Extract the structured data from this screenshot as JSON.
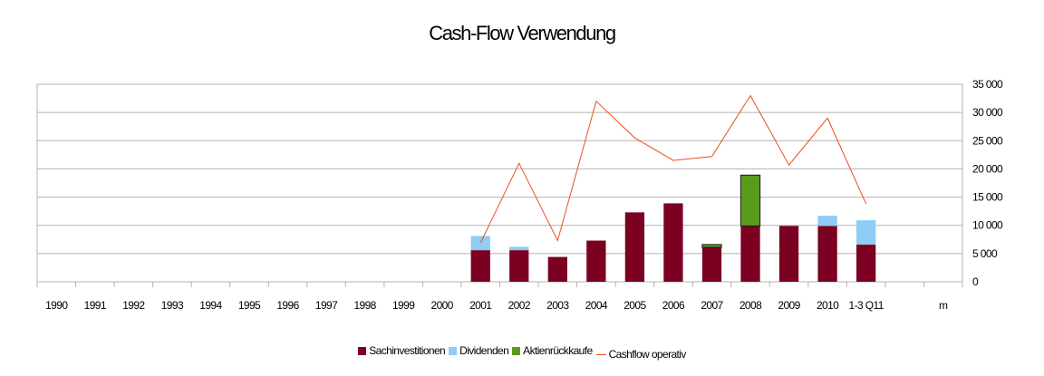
{
  "chart_data": {
    "type": "bar",
    "title": "Cash-Flow Verwendung",
    "categories": [
      "1990",
      "1991",
      "1992",
      "1993",
      "1994",
      "1995",
      "1996",
      "1997",
      "1998",
      "1999",
      "2000",
      "2001",
      "2002",
      "2003",
      "2004",
      "2005",
      "2006",
      "2007",
      "2008",
      "2009",
      "2010",
      "1-3 Q11",
      "",
      "m"
    ],
    "stacked": true,
    "series": [
      {
        "name": "Sachinvestitionen",
        "kind": "bar",
        "color": "#7b0022",
        "values": [
          null,
          null,
          null,
          null,
          null,
          null,
          null,
          null,
          null,
          null,
          null,
          5600,
          5600,
          4400,
          7300,
          12300,
          13900,
          6100,
          9900,
          9900,
          9900,
          6600,
          null,
          null
        ]
      },
      {
        "name": "Dividenden",
        "kind": "bar",
        "color": "#8ecdf5",
        "values": [
          null,
          null,
          null,
          null,
          null,
          null,
          null,
          null,
          null,
          null,
          null,
          2500,
          600,
          null,
          null,
          null,
          null,
          null,
          null,
          null,
          1800,
          4300,
          null,
          null
        ]
      },
      {
        "name": "Aktienrückkaufe",
        "kind": "bar",
        "color": "#5a9b1c",
        "values": [
          null,
          null,
          null,
          null,
          null,
          null,
          null,
          null,
          null,
          null,
          null,
          null,
          null,
          null,
          null,
          null,
          null,
          500,
          9000,
          null,
          null,
          null,
          null,
          null
        ]
      },
      {
        "name": "Cashflow operativ",
        "kind": "line",
        "color": "#e8501e",
        "values": [
          null,
          null,
          null,
          null,
          null,
          null,
          null,
          null,
          null,
          null,
          null,
          6900,
          21000,
          7300,
          32000,
          25500,
          21500,
          22200,
          33000,
          20700,
          29000,
          13800,
          null,
          null
        ]
      }
    ],
    "y_ticks": [
      "35 000",
      "30 000",
      "25 000",
      "20 000",
      "15 000",
      "10 000",
      "5 000",
      "0"
    ],
    "ylim": [
      0,
      35000
    ],
    "y_axis_position": "right",
    "grid": true,
    "legend_position": "bottom"
  }
}
